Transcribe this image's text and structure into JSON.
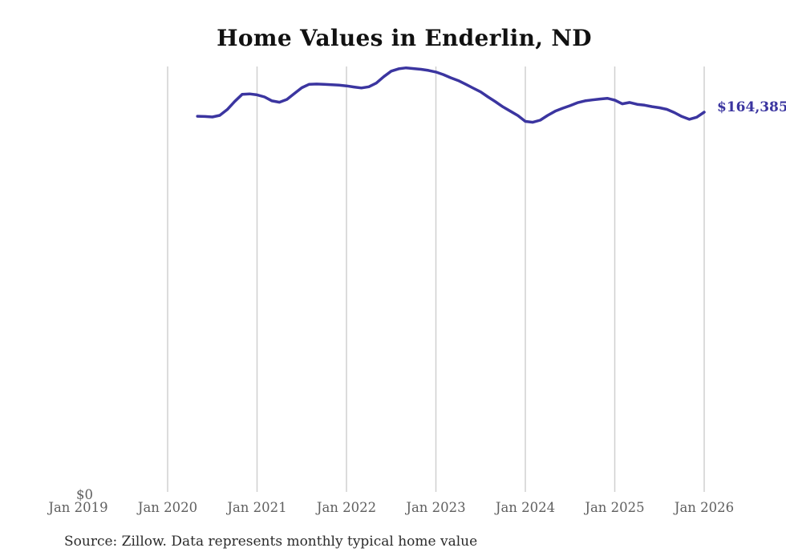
{
  "page": {
    "background": "#ffffff"
  },
  "chart_data": {
    "type": "line",
    "title": "Home Values in Enderlin, ND",
    "series_name": "Monthly typical home value",
    "end_label": "$164,385",
    "end_value": 164385,
    "y_zero_label": "$0",
    "xlabel": "",
    "ylabel": "",
    "ylim": [
      0,
      184200
    ],
    "grid": "vertical-only",
    "legend": "none",
    "line_color": "#3b35a0",
    "gridline_color": "#d0d0d0",
    "tick_label_color": "#606060",
    "x_tick_labels": [
      "Jan 2019",
      "Jan 2020",
      "Jan 2021",
      "Jan 2022",
      "Jan 2023",
      "Jan 2024",
      "Jan 2025",
      "Jan 2026"
    ],
    "months": [
      "2020-05",
      "2020-06",
      "2020-07",
      "2020-08",
      "2020-09",
      "2020-10",
      "2020-11",
      "2020-12",
      "2021-01",
      "2021-02",
      "2021-03",
      "2021-04",
      "2021-05",
      "2021-06",
      "2021-07",
      "2021-08",
      "2021-09",
      "2021-10",
      "2021-11",
      "2021-12",
      "2022-01",
      "2022-02",
      "2022-03",
      "2022-04",
      "2022-05",
      "2022-06",
      "2022-07",
      "2022-08",
      "2022-09",
      "2022-10",
      "2022-11",
      "2022-12",
      "2023-01",
      "2023-02",
      "2023-03",
      "2023-04",
      "2023-05",
      "2023-06",
      "2023-07",
      "2023-08",
      "2023-09",
      "2023-10",
      "2023-11",
      "2023-12",
      "2024-01",
      "2024-02",
      "2024-03",
      "2024-04",
      "2024-05",
      "2024-06",
      "2024-07",
      "2024-08",
      "2024-09",
      "2024-10",
      "2024-11",
      "2024-12",
      "2025-01",
      "2025-02",
      "2025-03",
      "2025-04",
      "2025-05",
      "2025-06",
      "2025-07",
      "2025-08",
      "2025-09",
      "2025-10",
      "2025-11",
      "2025-12",
      "2026-01"
    ],
    "values": [
      162600,
      162500,
      162300,
      163000,
      165500,
      169000,
      172100,
      172300,
      171900,
      171000,
      169300,
      168700,
      169900,
      172500,
      175000,
      176500,
      176600,
      176500,
      176300,
      176100,
      175800,
      175300,
      174900,
      175400,
      177000,
      179800,
      182200,
      183200,
      183600,
      183300,
      183000,
      182500,
      181800,
      180700,
      179300,
      178100,
      176500,
      174800,
      173200,
      171000,
      168900,
      166700,
      164800,
      162900,
      160400,
      160000,
      160900,
      163000,
      164800,
      166100,
      167200,
      168500,
      169300,
      169700,
      170100,
      170400,
      169600,
      168000,
      168600,
      167800,
      167400,
      166800,
      166300,
      165600,
      164200,
      162500,
      161300,
      162200,
      164385
    ]
  },
  "source": {
    "text": "Source: Zillow. Data represents monthly typical home value"
  }
}
